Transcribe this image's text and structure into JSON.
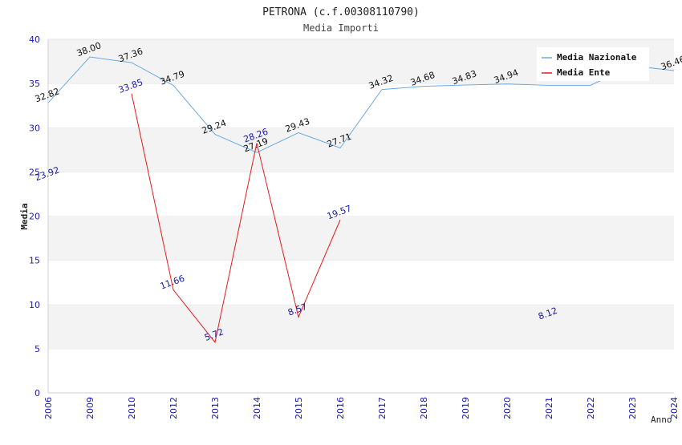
{
  "chart_data": {
    "type": "line",
    "title": "PETRONA (c.f.00308110790)",
    "subtitle": "Media Importi",
    "xlabel": "Anno",
    "ylabel": "Media",
    "ylim": [
      0,
      40
    ],
    "yticks": [
      0,
      5,
      10,
      15,
      20,
      25,
      30,
      35,
      40
    ],
    "categories": [
      "2006",
      "2009",
      "2010",
      "2012",
      "2013",
      "2014",
      "2015",
      "2016",
      "2017",
      "2018",
      "2019",
      "2020",
      "2021",
      "2022",
      "2023",
      "2024"
    ],
    "grid": "horizontal bands",
    "legend_position": "top-right",
    "series": [
      {
        "name": "Media Nazionale",
        "color": "#6aaae4",
        "values": [
          32.82,
          38.0,
          37.36,
          34.79,
          29.24,
          27.19,
          29.43,
          27.71,
          34.32,
          34.68,
          34.83,
          34.94,
          34.8,
          34.8,
          37.0,
          36.46
        ],
        "labels": [
          "32.82",
          "38.00",
          "37.36",
          "34.79",
          "29.24",
          "27.19",
          "29.43",
          "27.71",
          "34.32",
          "34.68",
          "34.83",
          "34.94",
          "",
          "",
          "",
          "36.46"
        ]
      },
      {
        "name": "Media Ente",
        "color": "#e31a1c",
        "values": [
          23.92,
          null,
          33.85,
          11.66,
          5.72,
          28.26,
          8.57,
          19.57,
          null,
          null,
          null,
          null,
          8.12,
          null,
          null,
          null
        ],
        "labels": [
          "23.92",
          "",
          "33.85",
          "11.66",
          "5.72",
          "28.26",
          "8.57",
          "19.57",
          "",
          "",
          "",
          "",
          "8.12",
          "",
          "",
          ""
        ]
      }
    ]
  }
}
